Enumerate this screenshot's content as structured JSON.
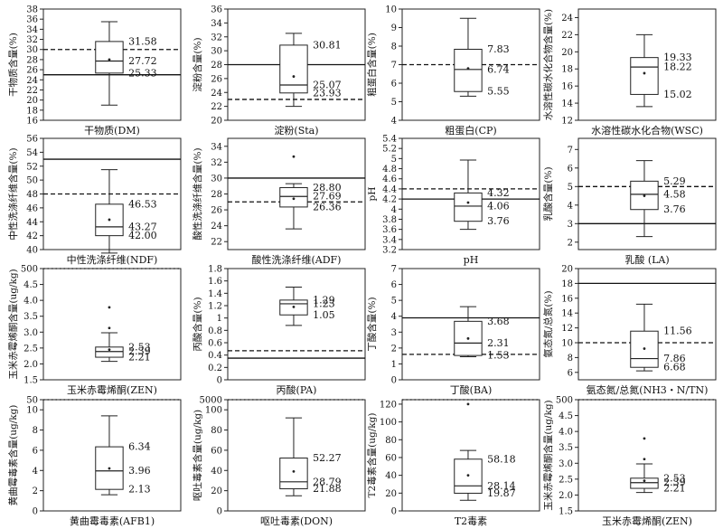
{
  "chart_data": [
    {
      "type": "box",
      "xlabel": "干物质(DM)",
      "ylabel": "干物质含量(%)",
      "ylim": [
        16,
        38
      ],
      "yticks": [
        16,
        18,
        20,
        22,
        24,
        26,
        28,
        30,
        32,
        34,
        36,
        38
      ],
      "whisker_low": 19.0,
      "q1": 25.33,
      "median": 27.72,
      "q3": 31.58,
      "whisker_high": 35.5,
      "mean": 28.0,
      "outliers": [],
      "ref_solid": 25.0,
      "ref_dashed": 30.0,
      "ref_dotted": null,
      "labels": [
        {
          "value": 31.58,
          "text": "31.58"
        },
        {
          "value": 27.72,
          "text": "27.72"
        },
        {
          "value": 25.33,
          "text": "25.33"
        }
      ]
    },
    {
      "type": "box",
      "xlabel": "淀粉(Sta)",
      "ylabel": "淀粉含量(%)",
      "ylim": [
        20,
        36
      ],
      "yticks": [
        20,
        22,
        24,
        26,
        28,
        30,
        32,
        34,
        36
      ],
      "whisker_low": 22.0,
      "q1": 23.93,
      "median": 25.07,
      "q3": 30.81,
      "whisker_high": 32.5,
      "mean": 26.3,
      "outliers": [],
      "ref_solid": 28.0,
      "ref_dashed": 23.0,
      "ref_dotted": null,
      "labels": [
        {
          "value": 30.81,
          "text": "30.81"
        },
        {
          "value": 25.07,
          "text": "25.07"
        },
        {
          "value": 23.93,
          "text": "23.93"
        }
      ]
    },
    {
      "type": "box",
      "xlabel": "粗蛋白(CP)",
      "ylabel": "粗蛋白含量(%)",
      "ylim": [
        4,
        10
      ],
      "yticks": [
        4,
        5,
        6,
        7,
        8,
        9,
        10
      ],
      "whisker_low": 5.3,
      "q1": 5.55,
      "median": 6.74,
      "q3": 7.83,
      "whisker_high": 9.5,
      "mean": 6.8,
      "outliers": [],
      "ref_solid": null,
      "ref_dashed": 7.0,
      "ref_dotted": null,
      "labels": [
        {
          "value": 7.83,
          "text": "7.83"
        },
        {
          "value": 6.74,
          "text": "6.74"
        },
        {
          "value": 5.55,
          "text": "5.55"
        }
      ]
    },
    {
      "type": "box",
      "xlabel": "水溶性碳水化合物(WSC)",
      "ylabel": "水溶性碳水化合物含量(%)",
      "ylim": [
        12,
        25
      ],
      "yticks": [
        12,
        14,
        16,
        18,
        20,
        22,
        24
      ],
      "whisker_low": 13.6,
      "q1": 15.02,
      "median": 18.22,
      "q3": 19.33,
      "whisker_high": 22.0,
      "mean": 17.5,
      "outliers": [],
      "ref_solid": null,
      "ref_dashed": null,
      "ref_dotted": null,
      "labels": [
        {
          "value": 19.33,
          "text": "19.33"
        },
        {
          "value": 18.22,
          "text": "18.22"
        },
        {
          "value": 15.02,
          "text": "15.02"
        }
      ]
    },
    {
      "type": "box",
      "xlabel": "中性洗涤纤维(NDF)",
      "ylabel": "中性洗涤纤维含量(%)",
      "ylim": [
        40,
        56
      ],
      "yticks": [
        40,
        42,
        44,
        46,
        48,
        50,
        52,
        54,
        56
      ],
      "whisker_low": 39.5,
      "q1": 42.0,
      "median": 43.27,
      "q3": 46.53,
      "whisker_high": 51.5,
      "mean": 44.3,
      "outliers": [],
      "ref_solid": 53.0,
      "ref_dashed": 48.0,
      "ref_dotted": null,
      "labels": [
        {
          "value": 46.53,
          "text": "46.53"
        },
        {
          "value": 43.27,
          "text": "43.27"
        },
        {
          "value": 42.0,
          "text": "42.00"
        }
      ]
    },
    {
      "type": "box",
      "xlabel": "酸性洗涤纤维(ADF)",
      "ylabel": "酸性洗涤纤维含量(%)",
      "ylim": [
        21,
        35
      ],
      "yticks": [
        22,
        24,
        26,
        28,
        30,
        32,
        34
      ],
      "whisker_low": 23.6,
      "q1": 26.36,
      "median": 27.69,
      "q3": 28.8,
      "whisker_high": 29.3,
      "mean": 27.4,
      "outliers": [
        32.7
      ],
      "ref_solid": 30.0,
      "ref_dashed": 27.0,
      "ref_dotted": null,
      "labels": [
        {
          "value": 28.8,
          "text": "28.80"
        },
        {
          "value": 27.69,
          "text": "27.69"
        },
        {
          "value": 26.36,
          "text": "26.36"
        }
      ]
    },
    {
      "type": "box",
      "xlabel": "pH",
      "ylabel": "pH",
      "ylim": [
        3.2,
        5.4
      ],
      "yticks": [
        3.2,
        3.4,
        3.6,
        3.8,
        4.0,
        4.2,
        4.4,
        4.6,
        4.8,
        5.0,
        5.2,
        5.4
      ],
      "whisker_low": 3.6,
      "q1": 3.76,
      "median": 4.06,
      "q3": 4.32,
      "whisker_high": 4.97,
      "mean": 4.13,
      "outliers": [],
      "ref_solid": 4.2,
      "ref_dashed": 4.4,
      "ref_dotted": null,
      "labels": [
        {
          "value": 4.32,
          "text": "4.32"
        },
        {
          "value": 4.06,
          "text": "4.06"
        },
        {
          "value": 3.76,
          "text": "3.76"
        }
      ]
    },
    {
      "type": "box",
      "xlabel": "乳酸 (LA)",
      "ylabel": "乳酸含量(%)",
      "ylim": [
        1.6,
        7.6
      ],
      "yticks": [
        2,
        3,
        4,
        5,
        6,
        7
      ],
      "whisker_low": 2.3,
      "q1": 3.76,
      "median": 4.58,
      "q3": 5.29,
      "whisker_high": 6.4,
      "mean": 4.5,
      "outliers": [],
      "ref_solid": 3.0,
      "ref_dashed": 5.0,
      "ref_dotted": null,
      "labels": [
        {
          "value": 5.29,
          "text": "5.29"
        },
        {
          "value": 4.58,
          "text": "4.58"
        },
        {
          "value": 3.76,
          "text": "3.76"
        }
      ]
    },
    {
      "type": "box",
      "xlabel": "玉米赤霉烯酮(ZEN)",
      "ylabel": "玉米赤霉烯酮含量(ug/kg)",
      "ylim": [
        1.5,
        5.0
      ],
      "yticks": [
        1.5,
        2.0,
        2.5,
        3.0,
        3.5,
        4.0,
        4.5
      ],
      "ytick_labels": [
        "1.5",
        "2.0",
        "2.5",
        "3.0",
        "3.5",
        "4.0",
        "4.5"
      ],
      "top_tick_label": "500",
      "whisker_low": 2.08,
      "q1": 2.21,
      "median": 2.39,
      "q3": 2.53,
      "whisker_high": 2.98,
      "mean": 2.45,
      "outliers": [
        3.13,
        3.78
      ],
      "ref_solid": null,
      "ref_dashed": null,
      "ref_dotted": 5.0,
      "labels": [
        {
          "value": 2.53,
          "text": "2.53"
        },
        {
          "value": 2.39,
          "text": "2.39"
        },
        {
          "value": 2.21,
          "text": "2.21"
        }
      ]
    },
    {
      "type": "box",
      "xlabel": "丙酸(PA)",
      "ylabel": "丙酸含量(%)",
      "ylim": [
        0,
        1.8
      ],
      "yticks": [
        0,
        0.2,
        0.4,
        0.6,
        0.8,
        1.0,
        1.2,
        1.4,
        1.6,
        1.8
      ],
      "whisker_low": 0.88,
      "q1": 1.05,
      "median": 1.23,
      "q3": 1.29,
      "whisker_high": 1.5,
      "mean": 1.18,
      "outliers": [],
      "ref_solid": 0.35,
      "ref_dashed": 0.47,
      "ref_dotted": null,
      "labels": [
        {
          "value": 1.29,
          "text": "1.29"
        },
        {
          "value": 1.23,
          "text": "1.23"
        },
        {
          "value": 1.05,
          "text": "1.05"
        }
      ]
    },
    {
      "type": "box",
      "xlabel": "丁酸(BA)",
      "ylabel": "丁酸含量(%)",
      "ylim": [
        0,
        7
      ],
      "yticks": [
        0,
        1,
        2,
        3,
        4,
        5,
        6,
        7
      ],
      "whisker_low": 1.45,
      "q1": 1.53,
      "median": 2.31,
      "q3": 3.68,
      "whisker_high": 4.6,
      "mean": 2.6,
      "outliers": [],
      "ref_solid": 3.9,
      "ref_dashed": 1.6,
      "ref_dotted": null,
      "labels": [
        {
          "value": 3.68,
          "text": "3.68"
        },
        {
          "value": 2.31,
          "text": "2.31"
        },
        {
          "value": 1.53,
          "text": "1.53"
        }
      ]
    },
    {
      "type": "box",
      "xlabel": "氨态氮/总氮(NH3・N/TN)",
      "ylabel": "氨态氮/总氮(%)",
      "ylim": [
        5,
        20
      ],
      "yticks": [
        6,
        8,
        10,
        12,
        14,
        16,
        18,
        20
      ],
      "whisker_low": 6.2,
      "q1": 6.68,
      "median": 7.86,
      "q3": 11.56,
      "whisker_high": 15.2,
      "mean": 9.2,
      "outliers": [],
      "ref_solid": 18.0,
      "ref_dashed": 10.0,
      "ref_dotted": null,
      "labels": [
        {
          "value": 11.56,
          "text": "11.56"
        },
        {
          "value": 7.86,
          "text": "7.86"
        },
        {
          "value": 6.68,
          "text": "6.68"
        }
      ]
    },
    {
      "type": "box",
      "xlabel": "黄曲霉毒素(AFB1)",
      "ylabel": "黄曲霉毒素含量(ug/kg)",
      "ylim": [
        0,
        11
      ],
      "yticks": [
        0,
        2,
        4,
        6,
        8,
        10
      ],
      "top_tick_label": "50",
      "whisker_low": 1.6,
      "q1": 2.13,
      "median": 3.96,
      "q3": 6.34,
      "whisker_high": 9.4,
      "mean": 4.2,
      "outliers": [],
      "ref_solid": null,
      "ref_dashed": null,
      "ref_dotted": 11.0,
      "labels": [
        {
          "value": 6.34,
          "text": "6.34"
        },
        {
          "value": 3.96,
          "text": "3.96"
        },
        {
          "value": 2.13,
          "text": "2.13"
        }
      ]
    },
    {
      "type": "box",
      "xlabel": "呕吐毒素(DON)",
      "ylabel": "呕吐毒素含量(ug/kg)",
      "ylim": [
        0,
        110
      ],
      "yticks": [
        0,
        20,
        40,
        60,
        80,
        100
      ],
      "top_tick_label": "5000",
      "whisker_low": 15.0,
      "q1": 21.88,
      "median": 28.79,
      "q3": 52.27,
      "whisker_high": 92.0,
      "mean": 39.0,
      "outliers": [],
      "ref_solid": null,
      "ref_dashed": null,
      "ref_dotted": 110.0,
      "labels": [
        {
          "value": 52.27,
          "text": "52.27"
        },
        {
          "value": 28.79,
          "text": "28.79"
        },
        {
          "value": 21.88,
          "text": "21.88"
        }
      ]
    },
    {
      "type": "box",
      "xlabel": "T2毒素",
      "ylabel": "T2毒素含量(ug/kg)",
      "ylim": [
        0,
        125
      ],
      "yticks": [
        0,
        20,
        40,
        60,
        80,
        100,
        120
      ],
      "whisker_low": 12.0,
      "q1": 19.87,
      "median": 28.14,
      "q3": 58.18,
      "whisker_high": 68.0,
      "mean": 40.0,
      "outliers": [
        120.0
      ],
      "ref_solid": null,
      "ref_dashed": null,
      "ref_dotted": 125.0,
      "labels": [
        {
          "value": 58.18,
          "text": "58.18"
        },
        {
          "value": 28.14,
          "text": "28.14"
        },
        {
          "value": 19.87,
          "text": "19.87"
        }
      ]
    },
    {
      "type": "box",
      "xlabel": "玉米赤霉烯酮(ZEN)",
      "ylabel": "玉米赤霉烯酮含量(ug/kg)",
      "ylim": [
        1.5,
        5.0
      ],
      "yticks": [
        1.5,
        2.0,
        2.5,
        3.0,
        3.5,
        4.0,
        4.5
      ],
      "ytick_labels": [
        "1.5",
        "2.0",
        "2.5",
        "3.0",
        "3.5",
        "4.0",
        "4.5"
      ],
      "top_tick_label": "500",
      "whisker_low": 2.08,
      "q1": 2.21,
      "median": 2.39,
      "q3": 2.53,
      "whisker_high": 2.98,
      "mean": 2.45,
      "outliers": [
        3.13,
        3.78
      ],
      "ref_solid": null,
      "ref_dashed": null,
      "ref_dotted": 5.0,
      "labels": [
        {
          "value": 2.53,
          "text": "2.53"
        },
        {
          "value": 2.39,
          "text": "2.39"
        },
        {
          "value": 2.21,
          "text": "2.21"
        }
      ]
    }
  ]
}
